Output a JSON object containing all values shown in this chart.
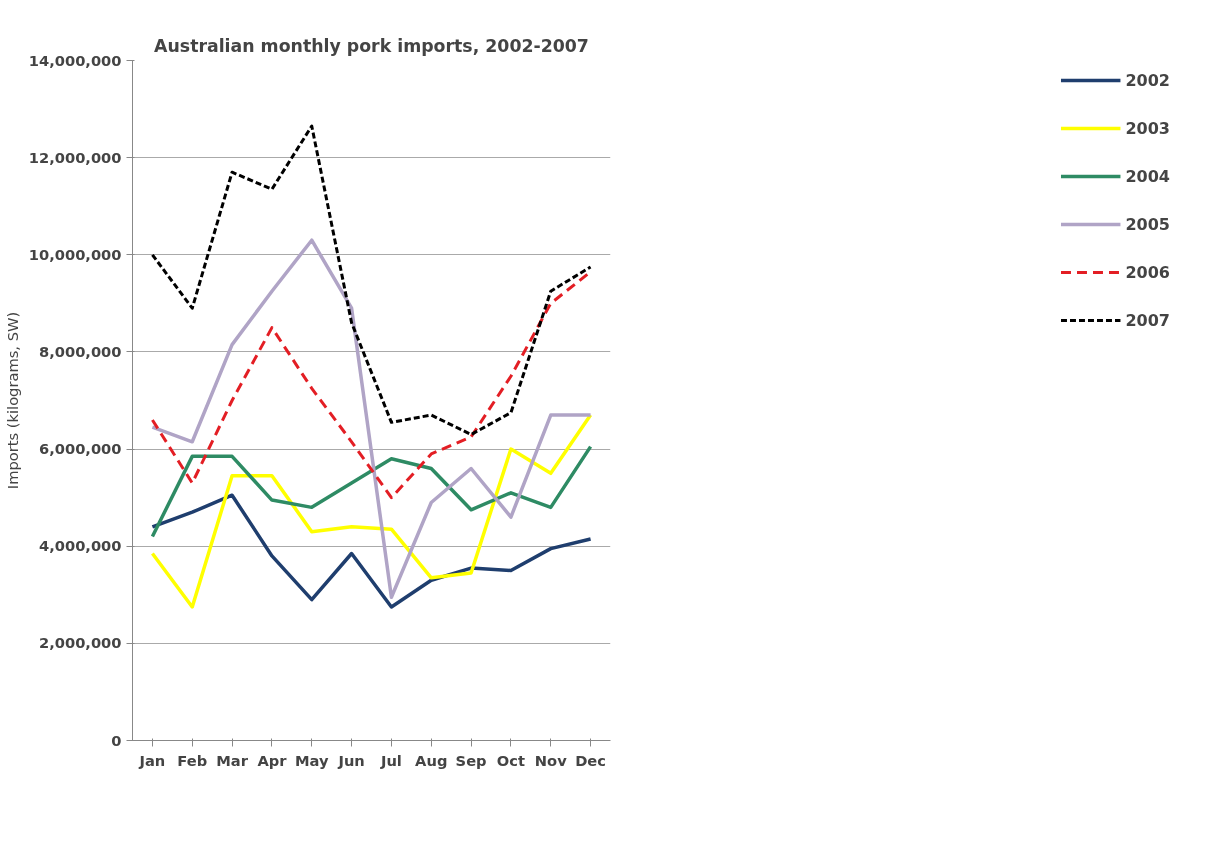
{
  "chart_data": {
    "type": "line",
    "title": "Australian monthly pork imports, 2002-2007",
    "ylabel": "Imports (kilograms, SW)",
    "categories": [
      "Jan",
      "Feb",
      "Mar",
      "Apr",
      "May",
      "Jun",
      "Jul",
      "Aug",
      "Sep",
      "Oct",
      "Nov",
      "Dec"
    ],
    "ylim": [
      0,
      14000000
    ],
    "yticks": [
      {
        "value": 0,
        "label": "0"
      },
      {
        "value": 2000000,
        "label": "2,000,000"
      },
      {
        "value": 4000000,
        "label": "4,000,000"
      },
      {
        "value": 6000000,
        "label": "6,000,000"
      },
      {
        "value": 8000000,
        "label": "8,000,000"
      },
      {
        "value": 10000000,
        "label": "10,000,000"
      },
      {
        "value": 12000000,
        "label": "12,000,000"
      },
      {
        "value": 14000000,
        "label": "14,000,000"
      }
    ],
    "grid": "y",
    "legend": "right",
    "marker": "none",
    "series": [
      {
        "name": "2002",
        "color": "#1f3e6e",
        "line_style": "solid",
        "values": [
          4400000,
          4700000,
          5050000,
          3800000,
          2900000,
          3850000,
          2750000,
          3300000,
          3550000,
          3500000,
          3950000,
          4150000
        ]
      },
      {
        "name": "2003",
        "color": "#ffff00",
        "line_style": "solid",
        "values": [
          3850000,
          2750000,
          5450000,
          5450000,
          4300000,
          4400000,
          4350000,
          3350000,
          3450000,
          6000000,
          5500000,
          6700000
        ]
      },
      {
        "name": "2004",
        "color": "#2e8b64",
        "line_style": "solid",
        "values": [
          4200000,
          5850000,
          5850000,
          4950000,
          4800000,
          5300000,
          5800000,
          5600000,
          4750000,
          5100000,
          4800000,
          6050000
        ]
      },
      {
        "name": "2005",
        "color": "#b0a4c6",
        "line_style": "solid",
        "values": [
          6450000,
          6150000,
          8150000,
          9250000,
          10300000,
          8900000,
          2950000,
          4900000,
          5600000,
          4600000,
          6700000,
          6700000
        ]
      },
      {
        "name": "2006",
        "color": "#e31e24",
        "line_style": "dashed",
        "values": [
          6600000,
          5300000,
          7000000,
          8500000,
          7250000,
          6150000,
          5000000,
          5900000,
          6250000,
          7500000,
          9000000,
          9650000
        ]
      },
      {
        "name": "2007",
        "color": "#000000",
        "line_style": "dotted",
        "values": [
          10000000,
          8900000,
          11700000,
          11350000,
          12650000,
          8600000,
          6550000,
          6700000,
          6300000,
          6750000,
          9250000,
          9750000
        ]
      }
    ]
  }
}
